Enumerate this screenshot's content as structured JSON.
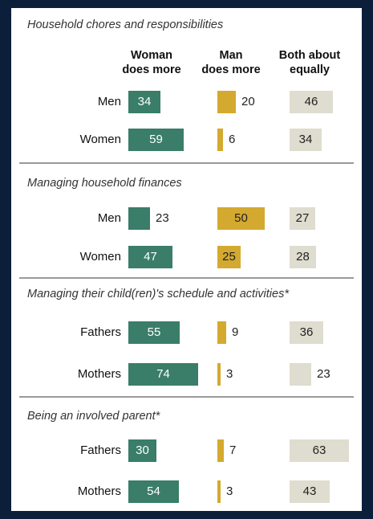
{
  "colors": {
    "woman": "#3a7d69",
    "man": "#d4a92f",
    "both": "#deddcf",
    "background": "#0b1f3a"
  },
  "column_headers": {
    "woman": "Woman\ndoes more",
    "man": "Man\ndoes more",
    "both": "Both about\nequally"
  },
  "chart_data": {
    "type": "bar",
    "orientation": "horizontal",
    "series_order": [
      "Woman does more",
      "Man does more",
      "Both about equally"
    ],
    "sections": [
      {
        "title": "Household chores and responsibilities",
        "rows": [
          {
            "label": "Men",
            "values": [
              34,
              20,
              46
            ]
          },
          {
            "label": "Women",
            "values": [
              59,
              6,
              34
            ]
          }
        ]
      },
      {
        "title": "Managing household finances",
        "rows": [
          {
            "label": "Men",
            "values": [
              23,
              50,
              27
            ]
          },
          {
            "label": "Women",
            "values": [
              47,
              25,
              28
            ]
          }
        ]
      },
      {
        "title": "Managing their child(ren)'s schedule and activities*",
        "rows": [
          {
            "label": "Fathers",
            "values": [
              55,
              9,
              36
            ]
          },
          {
            "label": "Mothers",
            "values": [
              74,
              3,
              23
            ]
          }
        ]
      },
      {
        "title": "Being an involved parent*",
        "rows": [
          {
            "label": "Fathers",
            "values": [
              30,
              7,
              63
            ]
          },
          {
            "label": "Mothers",
            "values": [
              54,
              3,
              43
            ]
          }
        ]
      }
    ]
  }
}
